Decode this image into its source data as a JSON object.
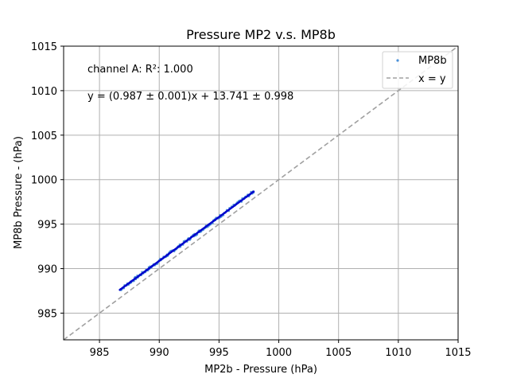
{
  "chart_data": {
    "type": "scatter",
    "title": "Pressure MP2 v.s. MP8b",
    "xlabel": "MP2b - Pressure (hPa)",
    "ylabel": "MP8b Pressure - (hPa)",
    "xlim": [
      982,
      1015
    ],
    "ylim": [
      982,
      1015
    ],
    "xticks": [
      985,
      990,
      995,
      1000,
      1005,
      1010,
      1015
    ],
    "yticks": [
      985,
      990,
      995,
      1000,
      1005,
      1010,
      1015
    ],
    "grid": true,
    "legend_position": "top-right",
    "annotations": [
      "channel A: R²: 1.000",
      "y = (0.987 ± 0.001)x + 13.741 ± 0.998"
    ],
    "series": [
      {
        "name": "MP8b",
        "kind": "scatter",
        "color": "#4a90d9",
        "x_range": [
          986.7,
          997.9
        ],
        "fit": {
          "slope": 0.987,
          "intercept": 13.741
        },
        "points_approx": 200
      },
      {
        "name": "x = y",
        "kind": "line",
        "color": "#a0a0a0",
        "dash": true,
        "x": [
          982,
          1015
        ],
        "y": [
          982,
          1015
        ]
      }
    ],
    "fit_line": {
      "slope": 0.987,
      "intercept": 13.741,
      "x": [
        986.7,
        997.9
      ],
      "color": "#0000cc"
    }
  }
}
